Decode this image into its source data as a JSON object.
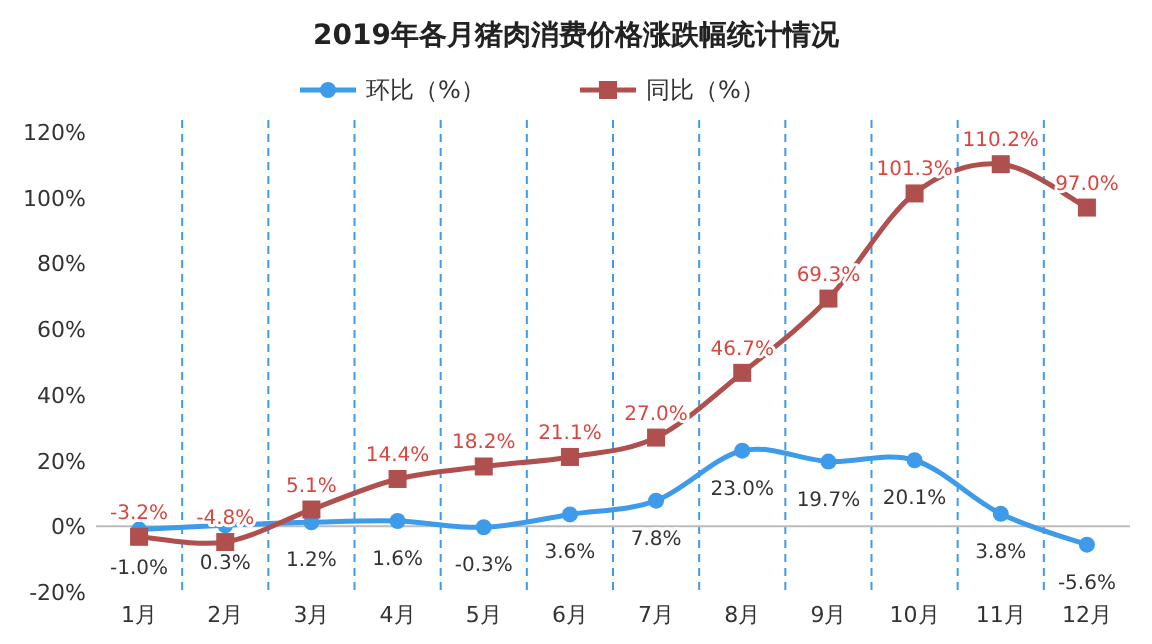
{
  "chart_data": {
    "type": "line",
    "title": "2019年各月猪肉消费价格涨跌幅统计情况",
    "categories": [
      "1月",
      "2月",
      "3月",
      "4月",
      "5月",
      "6月",
      "7月",
      "8月",
      "9月",
      "10月",
      "11月",
      "12月"
    ],
    "series": [
      {
        "name": "环比（%）",
        "color": "#3d9be9",
        "marker": "circle",
        "values": [
          -1.0,
          0.3,
          1.2,
          1.6,
          -0.3,
          3.6,
          7.8,
          23.0,
          19.7,
          20.1,
          3.8,
          -5.6
        ],
        "value_labels": [
          "-1.0%",
          "0.3%",
          "1.2%",
          "1.6%",
          "-0.3%",
          "3.6%",
          "7.8%",
          "23.0%",
          "19.7%",
          "20.1%",
          "3.8%",
          "-5.6%"
        ]
      },
      {
        "name": "同比（%）",
        "color": "#b0504e",
        "marker": "square",
        "values": [
          -3.2,
          -4.8,
          5.1,
          14.4,
          18.2,
          21.1,
          27.0,
          46.7,
          69.3,
          101.3,
          110.2,
          97.0
        ],
        "value_labels": [
          "-3.2%",
          "-4.8%",
          "5.1%",
          "14.4%",
          "18.2%",
          "21.1%",
          "27.0%",
          "46.7%",
          "69.3%",
          "101.3%",
          "110.2%",
          "97.0%"
        ]
      }
    ],
    "ylim": [
      -20,
      120
    ],
    "yticks": [
      {
        "value": -20,
        "label": "-20%"
      },
      {
        "value": 0,
        "label": "0%"
      },
      {
        "value": 20,
        "label": "20%"
      },
      {
        "value": 40,
        "label": "40%"
      },
      {
        "value": 60,
        "label": "60%"
      },
      {
        "value": 80,
        "label": "80%"
      },
      {
        "value": 100,
        "label": "100%"
      },
      {
        "value": 120,
        "label": "120%"
      }
    ],
    "grid": "x",
    "legend": "top"
  }
}
